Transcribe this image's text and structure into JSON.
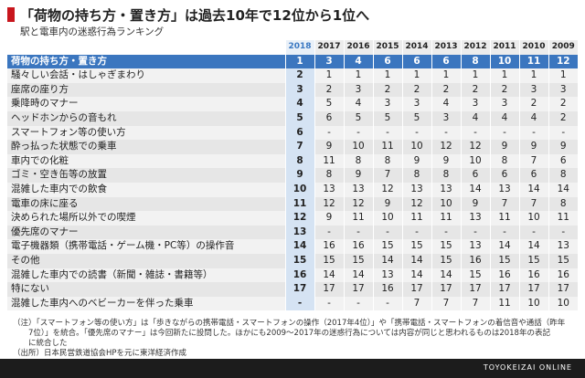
{
  "title": "「荷物の持ち方・置き方」は過去10年で12位から1位へ",
  "subtitle": "駅と電車内の迷惑行為ランキング",
  "years": [
    "2018",
    "2017",
    "2016",
    "2015",
    "2014",
    "2013",
    "2012",
    "2011",
    "2010",
    "2009"
  ],
  "rows": [
    {
      "label": "荷物の持ち方・置き方",
      "values": [
        "1",
        "3",
        "4",
        "6",
        "6",
        "6",
        "8",
        "10",
        "11",
        "12"
      ]
    },
    {
      "label": "騒々しい会話・はしゃぎまわり",
      "values": [
        "2",
        "1",
        "1",
        "1",
        "1",
        "1",
        "1",
        "1",
        "1",
        "1"
      ]
    },
    {
      "label": "座席の座り方",
      "values": [
        "3",
        "2",
        "3",
        "2",
        "2",
        "2",
        "2",
        "2",
        "3",
        "3"
      ]
    },
    {
      "label": "乗降時のマナー",
      "values": [
        "4",
        "5",
        "4",
        "3",
        "3",
        "4",
        "3",
        "3",
        "2",
        "2"
      ]
    },
    {
      "label": "ヘッドホンからの音もれ",
      "values": [
        "5",
        "6",
        "5",
        "5",
        "5",
        "3",
        "4",
        "4",
        "4",
        "2"
      ]
    },
    {
      "label": "スマートフォン等の使い方",
      "values": [
        "6",
        "-",
        "-",
        "-",
        "-",
        "-",
        "-",
        "-",
        "-",
        "-"
      ]
    },
    {
      "label": "酔っ払った状態での乗車",
      "values": [
        "7",
        "9",
        "10",
        "11",
        "10",
        "12",
        "12",
        "9",
        "9",
        "9"
      ]
    },
    {
      "label": "車内での化粧",
      "values": [
        "8",
        "11",
        "8",
        "8",
        "9",
        "9",
        "10",
        "8",
        "7",
        "6"
      ]
    },
    {
      "label": "ゴミ・空き缶等の放置",
      "values": [
        "9",
        "8",
        "9",
        "7",
        "8",
        "8",
        "6",
        "6",
        "6",
        "8"
      ]
    },
    {
      "label": "混雑した車内での飲食",
      "values": [
        "10",
        "13",
        "13",
        "12",
        "13",
        "13",
        "14",
        "13",
        "14",
        "14"
      ]
    },
    {
      "label": "電車の床に座る",
      "values": [
        "11",
        "12",
        "12",
        "9",
        "12",
        "10",
        "9",
        "7",
        "7",
        "8"
      ]
    },
    {
      "label": "決められた場所以外での喫煙",
      "values": [
        "12",
        "9",
        "11",
        "10",
        "11",
        "11",
        "13",
        "11",
        "10",
        "11"
      ]
    },
    {
      "label": "優先席のマナー",
      "values": [
        "13",
        "-",
        "-",
        "-",
        "-",
        "-",
        "-",
        "-",
        "-",
        "-"
      ]
    },
    {
      "label": "電子機器類（携帯電話・ゲーム機・PC等）の操作音",
      "values": [
        "14",
        "16",
        "16",
        "15",
        "15",
        "15",
        "13",
        "14",
        "14",
        "13"
      ]
    },
    {
      "label": "その他",
      "values": [
        "15",
        "15",
        "15",
        "14",
        "14",
        "15",
        "16",
        "15",
        "15",
        "15"
      ]
    },
    {
      "label": "混雑した車内での読書（新聞・雑誌・書籍等）",
      "values": [
        "16",
        "14",
        "14",
        "13",
        "14",
        "14",
        "15",
        "16",
        "16",
        "16"
      ]
    },
    {
      "label": "特にない",
      "values": [
        "17",
        "17",
        "17",
        "16",
        "17",
        "17",
        "17",
        "17",
        "17",
        "17"
      ]
    },
    {
      "label": "混雑した車内へのベビーカーを伴った乗車",
      "values": [
        "-",
        "-",
        "-",
        "-",
        "7",
        "7",
        "7",
        "11",
        "10",
        "10"
      ]
    }
  ],
  "notes": [
    "（注）「スマートフォン等の使い方」は「歩きながらの携帯電話・スマートフォンの操作（2017年4位）」や「携帯電話・スマートフォンの着信音や通話（昨年",
    "　　7位）」を統合。「優先席のマナー」は今回新たに設問した。ほかにも2009～2017年の迷惑行為については内容が同じと思われるものは2018年の表記",
    "　　に統合した",
    "（出所）日本民営鉄道協会HPを元に東洋経済作成"
  ],
  "brand": "TOYOKEIZAI ONLINE",
  "colors": {
    "accent_red": "#c8161d",
    "highlight_blue": "#3b76bf",
    "highlight_column": "#d5e3f3"
  }
}
